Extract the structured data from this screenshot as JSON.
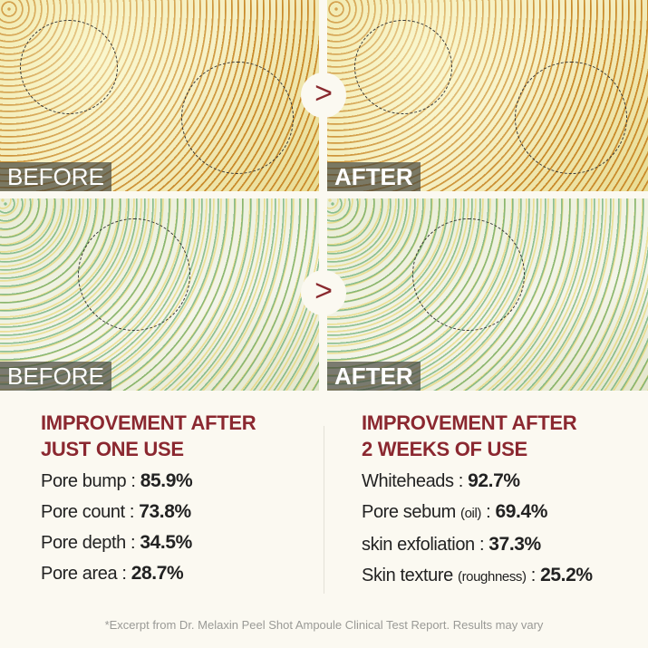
{
  "panels": {
    "top_before_label": "BEFORE",
    "top_after_label": "AFTER",
    "bottom_before_label": "BEFORE",
    "bottom_after_label": "AFTER",
    "arrow_glyph": ">"
  },
  "left": {
    "heading_line1": "IMPROVEMENT AFTER",
    "heading_line2": "JUST ONE USE",
    "items": [
      {
        "label": "Pore bump",
        "value": "85.9%"
      },
      {
        "label": "Pore count",
        "value": "73.8%"
      },
      {
        "label": "Pore depth",
        "value": "34.5%"
      },
      {
        "label": "Pore area",
        "value": "28.7%"
      }
    ]
  },
  "right": {
    "heading_line1": "IMPROVEMENT AFTER",
    "heading_line2": "2 WEEKS OF USE",
    "items": [
      {
        "label": "Whiteheads",
        "sub": "",
        "value": "92.7%"
      },
      {
        "label": "Pore sebum",
        "sub": "(oil)",
        "value": "69.4%"
      },
      {
        "label": "skin exfoliation",
        "sub": "",
        "value": "37.3%"
      },
      {
        "label": "Skin texture",
        "sub": "(roughness)",
        "value": "25.2%"
      }
    ]
  },
  "footnote": "*Excerpt from Dr. Melaxin Peel Shot Ampoule Clinical Test Report. Results may vary",
  "colors": {
    "heading": "#8b2830",
    "background": "#fbf9f1"
  }
}
